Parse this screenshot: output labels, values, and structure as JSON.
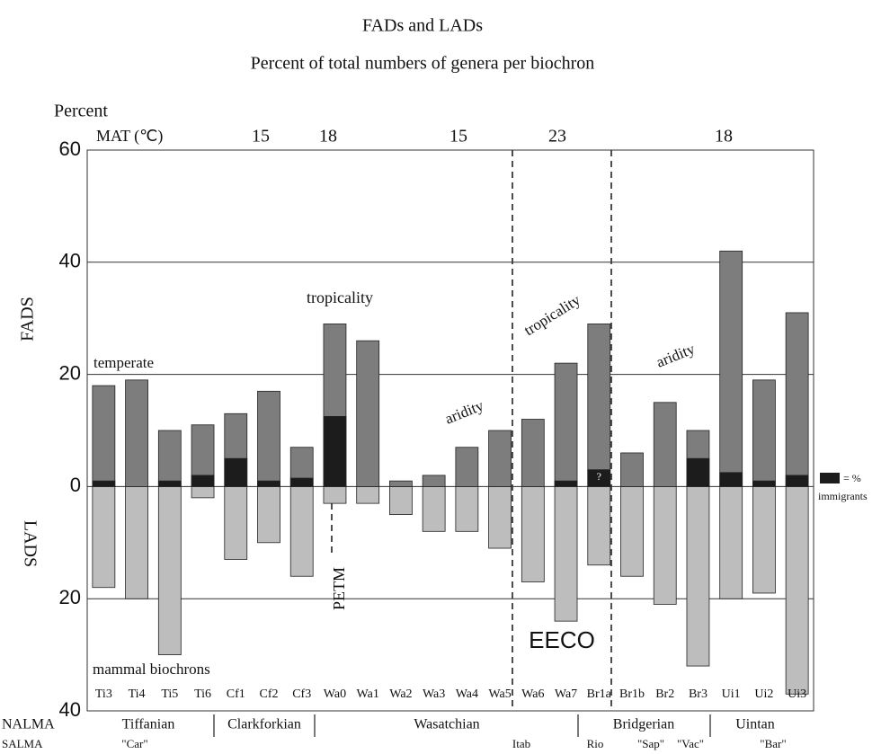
{
  "chart_data": {
    "type": "bar",
    "title": "FADs and LADs",
    "subtitle": "Percent of total numbers of genera per biochron",
    "y_label": "Percent",
    "mat_label": "MAT (℃)",
    "mat_values": [
      15,
      18,
      15,
      23,
      18
    ],
    "categories_label": "mammal biochrons",
    "categories": [
      "Ti3",
      "Ti4",
      "Ti5",
      "Ti6",
      "Cf1",
      "Cf2",
      "Cf3",
      "Wa0",
      "Wa1",
      "Wa2",
      "Wa3",
      "Wa4",
      "Wa5",
      "Wa6",
      "Wa7",
      "Br1a",
      "Br1b",
      "Br2",
      "Br3",
      "Ui1",
      "Ui2",
      "Ui3"
    ],
    "series": [
      {
        "name": "FADS",
        "color": "#7d7d7d",
        "values": [
          18,
          19,
          10,
          11,
          13,
          17,
          7,
          29,
          26,
          1,
          2,
          7,
          10,
          12,
          22,
          29,
          6,
          15,
          10,
          42,
          19,
          31
        ]
      },
      {
        "name": "immigrants",
        "color": "#1c1c1c",
        "values": [
          1,
          0,
          1,
          2,
          5,
          1,
          1.5,
          12.5,
          0,
          0,
          0,
          0,
          0,
          0,
          1,
          3,
          0,
          0,
          5,
          2.5,
          1,
          2
        ]
      },
      {
        "name": "LADS",
        "color": "#bdbdbd",
        "values": [
          -18,
          -20,
          -30,
          -2,
          -13,
          -10,
          -16,
          -3,
          -3,
          -5,
          -8,
          -8,
          -11,
          -17,
          -24,
          -14,
          -16,
          -21,
          -32,
          -20,
          -19,
          -37
        ]
      }
    ],
    "legend_prefix": "= %",
    "uncertain_mark": "?",
    "ylim": [
      -40,
      60
    ],
    "yticks": [
      60,
      40,
      20,
      0,
      {
        "value": -20,
        "label": "20"
      },
      {
        "value": -40,
        "label": "40"
      }
    ],
    "grid": true,
    "annotations": [
      "temperate",
      "tropicality",
      "tropicality",
      "aridity",
      "aridity",
      "PETM",
      "EECO"
    ],
    "nalma_label": "NALMA",
    "nalma": [
      "Tiffanian",
      "Clarkforkian",
      "Wasatchian",
      "Bridgerian",
      "Uintan"
    ],
    "salma_label": "SALMA",
    "salma": [
      "\"Car\"",
      "Itab",
      "Rio",
      "\"Sap\"",
      "\"Vac\"",
      "\"Bar\""
    ]
  }
}
